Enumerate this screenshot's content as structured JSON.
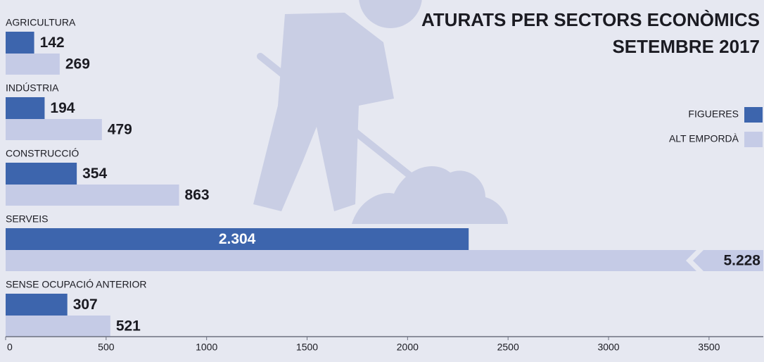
{
  "chart_data": {
    "type": "bar",
    "orientation": "horizontal",
    "title": "ATURATS PER SECTORS ECONÒMICS",
    "subtitle": "SETEMBRE 2017",
    "categories": [
      "AGRICULTURA",
      "INDÚSTRIA",
      "CONSTRUCCIÓ",
      "SERVEIS",
      "SENSE OCUPACIÓ ANTERIOR"
    ],
    "series": [
      {
        "name": "FIGUERES",
        "color": "#3d65ad",
        "values": [
          142,
          194,
          354,
          2304,
          307
        ],
        "value_labels": [
          "142",
          "194",
          "354",
          "2.304",
          "307"
        ]
      },
      {
        "name": "ALT EMPORDÀ",
        "color": "#c5cbe6",
        "values": [
          269,
          479,
          863,
          5228,
          521
        ],
        "value_labels": [
          "269",
          "479",
          "863",
          "5.228",
          "521"
        ]
      }
    ],
    "xlim": [
      0,
      3770
    ],
    "xticks": [
      0,
      500,
      1000,
      1500,
      2000,
      2500,
      3000,
      3500
    ],
    "grid": false,
    "legend": "right"
  }
}
